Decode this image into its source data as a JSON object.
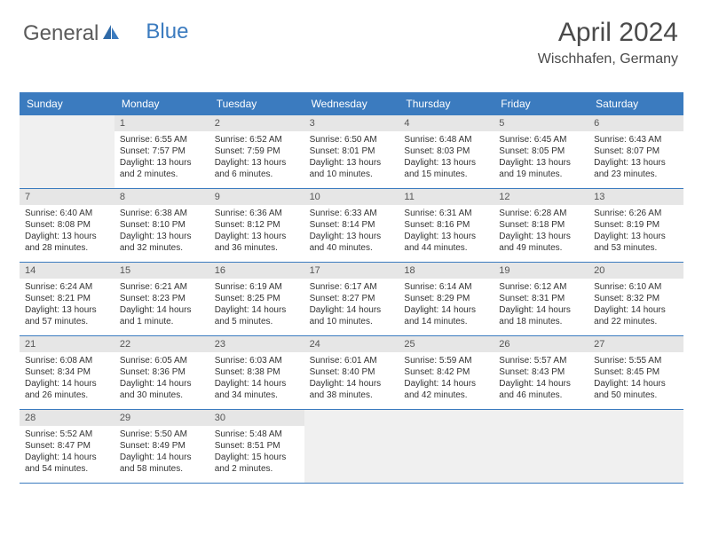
{
  "logo": {
    "text1": "General",
    "text2": "Blue"
  },
  "header": {
    "month": "April 2024",
    "location": "Wischhafen, Germany"
  },
  "colors": {
    "header_bg": "#3b7bbf",
    "daynum_bg": "#e6e6e6",
    "empty_bg": "#f0f0f0",
    "text": "#333333"
  },
  "weekdays": [
    "Sunday",
    "Monday",
    "Tuesday",
    "Wednesday",
    "Thursday",
    "Friday",
    "Saturday"
  ],
  "weeks": [
    [
      {
        "empty": true
      },
      {
        "num": "1",
        "sunrise": "Sunrise: 6:55 AM",
        "sunset": "Sunset: 7:57 PM",
        "day1": "Daylight: 13 hours",
        "day2": "and 2 minutes."
      },
      {
        "num": "2",
        "sunrise": "Sunrise: 6:52 AM",
        "sunset": "Sunset: 7:59 PM",
        "day1": "Daylight: 13 hours",
        "day2": "and 6 minutes."
      },
      {
        "num": "3",
        "sunrise": "Sunrise: 6:50 AM",
        "sunset": "Sunset: 8:01 PM",
        "day1": "Daylight: 13 hours",
        "day2": "and 10 minutes."
      },
      {
        "num": "4",
        "sunrise": "Sunrise: 6:48 AM",
        "sunset": "Sunset: 8:03 PM",
        "day1": "Daylight: 13 hours",
        "day2": "and 15 minutes."
      },
      {
        "num": "5",
        "sunrise": "Sunrise: 6:45 AM",
        "sunset": "Sunset: 8:05 PM",
        "day1": "Daylight: 13 hours",
        "day2": "and 19 minutes."
      },
      {
        "num": "6",
        "sunrise": "Sunrise: 6:43 AM",
        "sunset": "Sunset: 8:07 PM",
        "day1": "Daylight: 13 hours",
        "day2": "and 23 minutes."
      }
    ],
    [
      {
        "num": "7",
        "sunrise": "Sunrise: 6:40 AM",
        "sunset": "Sunset: 8:08 PM",
        "day1": "Daylight: 13 hours",
        "day2": "and 28 minutes."
      },
      {
        "num": "8",
        "sunrise": "Sunrise: 6:38 AM",
        "sunset": "Sunset: 8:10 PM",
        "day1": "Daylight: 13 hours",
        "day2": "and 32 minutes."
      },
      {
        "num": "9",
        "sunrise": "Sunrise: 6:36 AM",
        "sunset": "Sunset: 8:12 PM",
        "day1": "Daylight: 13 hours",
        "day2": "and 36 minutes."
      },
      {
        "num": "10",
        "sunrise": "Sunrise: 6:33 AM",
        "sunset": "Sunset: 8:14 PM",
        "day1": "Daylight: 13 hours",
        "day2": "and 40 minutes."
      },
      {
        "num": "11",
        "sunrise": "Sunrise: 6:31 AM",
        "sunset": "Sunset: 8:16 PM",
        "day1": "Daylight: 13 hours",
        "day2": "and 44 minutes."
      },
      {
        "num": "12",
        "sunrise": "Sunrise: 6:28 AM",
        "sunset": "Sunset: 8:18 PM",
        "day1": "Daylight: 13 hours",
        "day2": "and 49 minutes."
      },
      {
        "num": "13",
        "sunrise": "Sunrise: 6:26 AM",
        "sunset": "Sunset: 8:19 PM",
        "day1": "Daylight: 13 hours",
        "day2": "and 53 minutes."
      }
    ],
    [
      {
        "num": "14",
        "sunrise": "Sunrise: 6:24 AM",
        "sunset": "Sunset: 8:21 PM",
        "day1": "Daylight: 13 hours",
        "day2": "and 57 minutes."
      },
      {
        "num": "15",
        "sunrise": "Sunrise: 6:21 AM",
        "sunset": "Sunset: 8:23 PM",
        "day1": "Daylight: 14 hours",
        "day2": "and 1 minute."
      },
      {
        "num": "16",
        "sunrise": "Sunrise: 6:19 AM",
        "sunset": "Sunset: 8:25 PM",
        "day1": "Daylight: 14 hours",
        "day2": "and 5 minutes."
      },
      {
        "num": "17",
        "sunrise": "Sunrise: 6:17 AM",
        "sunset": "Sunset: 8:27 PM",
        "day1": "Daylight: 14 hours",
        "day2": "and 10 minutes."
      },
      {
        "num": "18",
        "sunrise": "Sunrise: 6:14 AM",
        "sunset": "Sunset: 8:29 PM",
        "day1": "Daylight: 14 hours",
        "day2": "and 14 minutes."
      },
      {
        "num": "19",
        "sunrise": "Sunrise: 6:12 AM",
        "sunset": "Sunset: 8:31 PM",
        "day1": "Daylight: 14 hours",
        "day2": "and 18 minutes."
      },
      {
        "num": "20",
        "sunrise": "Sunrise: 6:10 AM",
        "sunset": "Sunset: 8:32 PM",
        "day1": "Daylight: 14 hours",
        "day2": "and 22 minutes."
      }
    ],
    [
      {
        "num": "21",
        "sunrise": "Sunrise: 6:08 AM",
        "sunset": "Sunset: 8:34 PM",
        "day1": "Daylight: 14 hours",
        "day2": "and 26 minutes."
      },
      {
        "num": "22",
        "sunrise": "Sunrise: 6:05 AM",
        "sunset": "Sunset: 8:36 PM",
        "day1": "Daylight: 14 hours",
        "day2": "and 30 minutes."
      },
      {
        "num": "23",
        "sunrise": "Sunrise: 6:03 AM",
        "sunset": "Sunset: 8:38 PM",
        "day1": "Daylight: 14 hours",
        "day2": "and 34 minutes."
      },
      {
        "num": "24",
        "sunrise": "Sunrise: 6:01 AM",
        "sunset": "Sunset: 8:40 PM",
        "day1": "Daylight: 14 hours",
        "day2": "and 38 minutes."
      },
      {
        "num": "25",
        "sunrise": "Sunrise: 5:59 AM",
        "sunset": "Sunset: 8:42 PM",
        "day1": "Daylight: 14 hours",
        "day2": "and 42 minutes."
      },
      {
        "num": "26",
        "sunrise": "Sunrise: 5:57 AM",
        "sunset": "Sunset: 8:43 PM",
        "day1": "Daylight: 14 hours",
        "day2": "and 46 minutes."
      },
      {
        "num": "27",
        "sunrise": "Sunrise: 5:55 AM",
        "sunset": "Sunset: 8:45 PM",
        "day1": "Daylight: 14 hours",
        "day2": "and 50 minutes."
      }
    ],
    [
      {
        "num": "28",
        "sunrise": "Sunrise: 5:52 AM",
        "sunset": "Sunset: 8:47 PM",
        "day1": "Daylight: 14 hours",
        "day2": "and 54 minutes."
      },
      {
        "num": "29",
        "sunrise": "Sunrise: 5:50 AM",
        "sunset": "Sunset: 8:49 PM",
        "day1": "Daylight: 14 hours",
        "day2": "and 58 minutes."
      },
      {
        "num": "30",
        "sunrise": "Sunrise: 5:48 AM",
        "sunset": "Sunset: 8:51 PM",
        "day1": "Daylight: 15 hours",
        "day2": "and 2 minutes."
      },
      {
        "empty": true
      },
      {
        "empty": true
      },
      {
        "empty": true
      },
      {
        "empty": true
      }
    ]
  ]
}
